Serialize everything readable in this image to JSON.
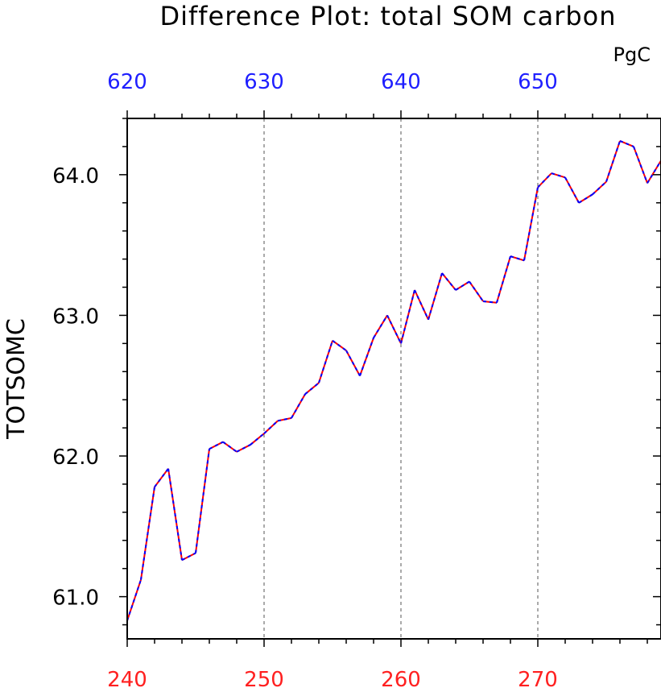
{
  "chart_data": {
    "type": "line",
    "title": "Difference Plot: total SOM carbon",
    "units": "PgC",
    "ylabel": "TOTSOMC",
    "xlabel": "",
    "x_bottom_ticks": [
      "240",
      "250",
      "260",
      "270"
    ],
    "x_top_ticks": [
      "620",
      "630",
      "640",
      "650"
    ],
    "y_ticks": [
      "61.0",
      "62.0",
      "63.0",
      "64.0"
    ],
    "xlim": [
      240,
      279
    ],
    "ylim": [
      60.7,
      64.4
    ],
    "top_axis_color": "#1f1fff",
    "bottom_axis_color": "#ff2020",
    "grid": "vertical dashed at major x ticks",
    "series": [
      {
        "color_primary": "#ff0000",
        "color_overlay": "#0000ff",
        "style": "red solid with blue dashed overlay",
        "x": [
          240,
          241,
          242,
          243,
          244,
          245,
          246,
          247,
          248,
          249,
          250,
          251,
          252,
          253,
          254,
          255,
          256,
          257,
          258,
          259,
          260,
          261,
          262,
          263,
          264,
          265,
          266,
          267,
          268,
          269,
          270,
          271,
          272,
          273,
          274,
          275,
          276,
          277,
          278,
          279
        ],
        "values": [
          60.83,
          61.12,
          61.78,
          61.91,
          61.26,
          61.31,
          62.05,
          62.1,
          62.03,
          62.08,
          62.16,
          62.25,
          62.27,
          62.44,
          62.52,
          62.82,
          62.75,
          62.57,
          62.84,
          63.0,
          62.8,
          63.18,
          62.97,
          63.3,
          63.18,
          63.24,
          63.1,
          63.09,
          63.42,
          63.39,
          63.91,
          64.01,
          63.98,
          63.8,
          63.86,
          63.95,
          64.24,
          64.2,
          63.94,
          64.1
        ]
      }
    ]
  }
}
